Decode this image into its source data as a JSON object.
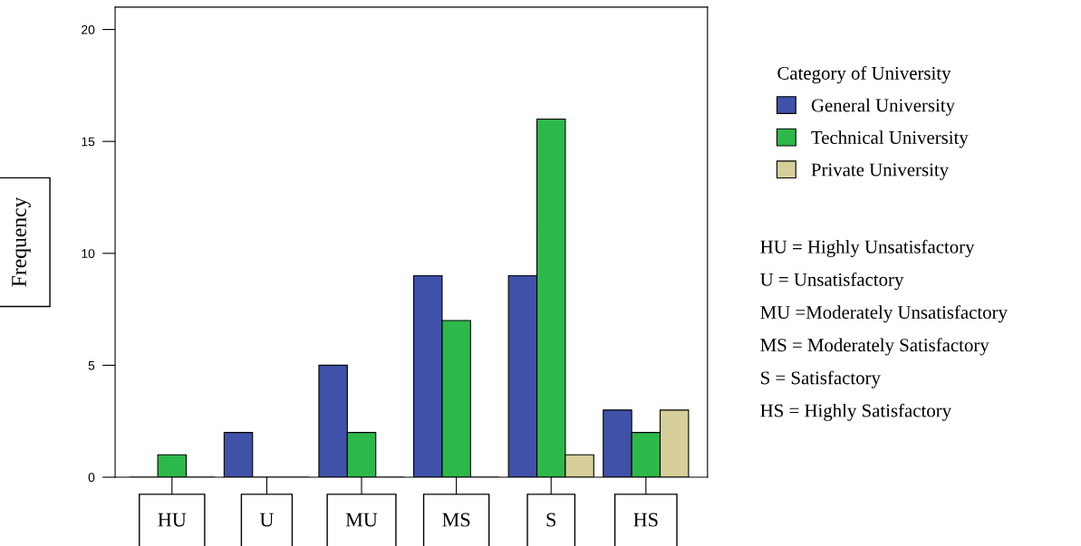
{
  "chart_data": {
    "type": "bar",
    "ylabel": "Frequency",
    "legend_title": "Category of University",
    "categories": [
      "HU",
      "U",
      "MU",
      "MS",
      "S",
      "HS"
    ],
    "series": [
      {
        "name": "General University",
        "color": "#3f51a8",
        "values": [
          0,
          2,
          5,
          9,
          9,
          3
        ]
      },
      {
        "name": "Technical University",
        "color": "#2db84a",
        "values": [
          1,
          0,
          2,
          7,
          16,
          2
        ]
      },
      {
        "name": "Private University",
        "color": "#d6cf9a",
        "values": [
          0,
          0,
          0,
          0,
          1,
          3
        ]
      }
    ],
    "ylim": [
      0,
      21
    ],
    "yticks": [
      0,
      5,
      10,
      15,
      20
    ],
    "grid": false,
    "legend": "right",
    "annotations": [
      "HU = Highly Unsatisfactory",
      "U = Unsatisfactory",
      "MU =Moderately Unsatisfactory",
      "MS = Moderately Satisfactory",
      "S = Satisfactory",
      "HS = Highly Satisfactory"
    ]
  }
}
